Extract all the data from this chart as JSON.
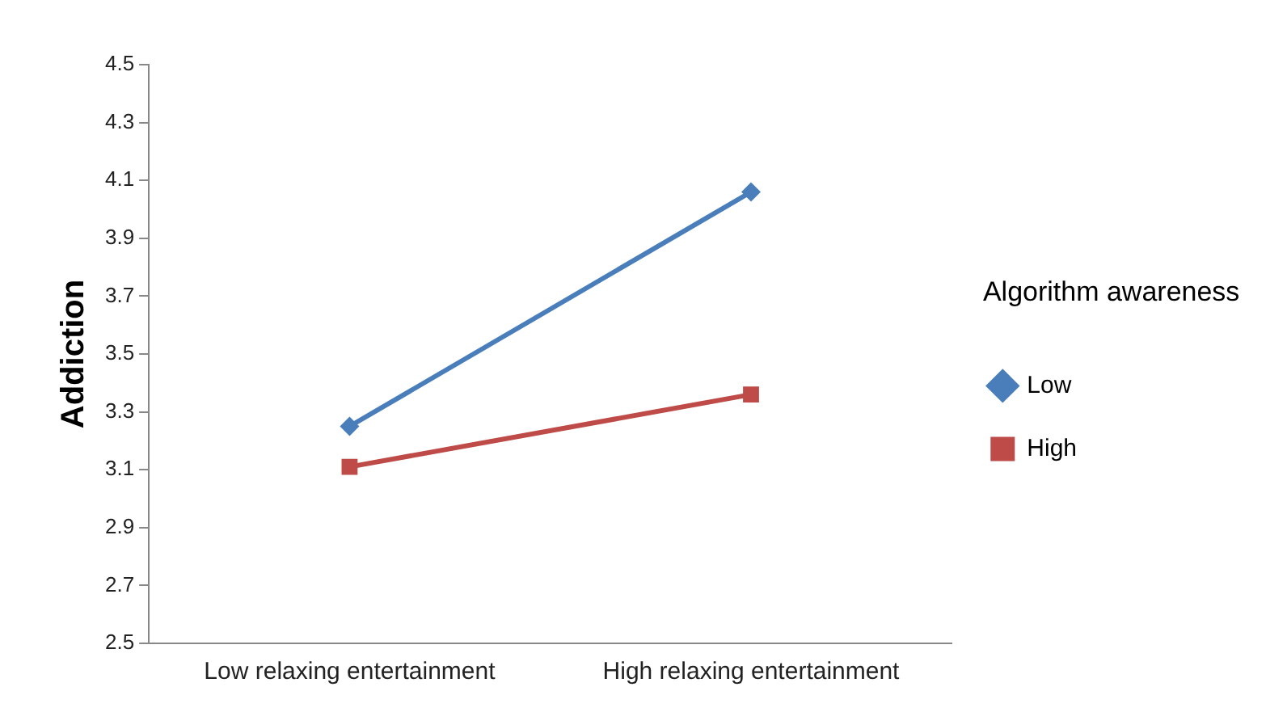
{
  "chart_data": {
    "type": "line",
    "ylabel": "Addiction",
    "legend_title": "Algorithm awareness",
    "categories": [
      "Low relaxing entertainment",
      "High relaxing entertainment"
    ],
    "series": [
      {
        "name": "Low",
        "color": "#4a7ebb",
        "values": [
          3.25,
          4.06
        ],
        "marker": "diamond"
      },
      {
        "name": "High",
        "color": "#be4b48",
        "values": [
          3.11,
          3.36
        ],
        "marker": "square"
      }
    ],
    "ylim": [
      2.5,
      4.5
    ],
    "yticks": [
      2.5,
      2.7,
      2.9,
      3.1,
      3.3,
      3.5,
      3.7,
      3.9,
      4.1,
      4.3,
      4.5
    ],
    "grid": false,
    "legend": "right"
  }
}
